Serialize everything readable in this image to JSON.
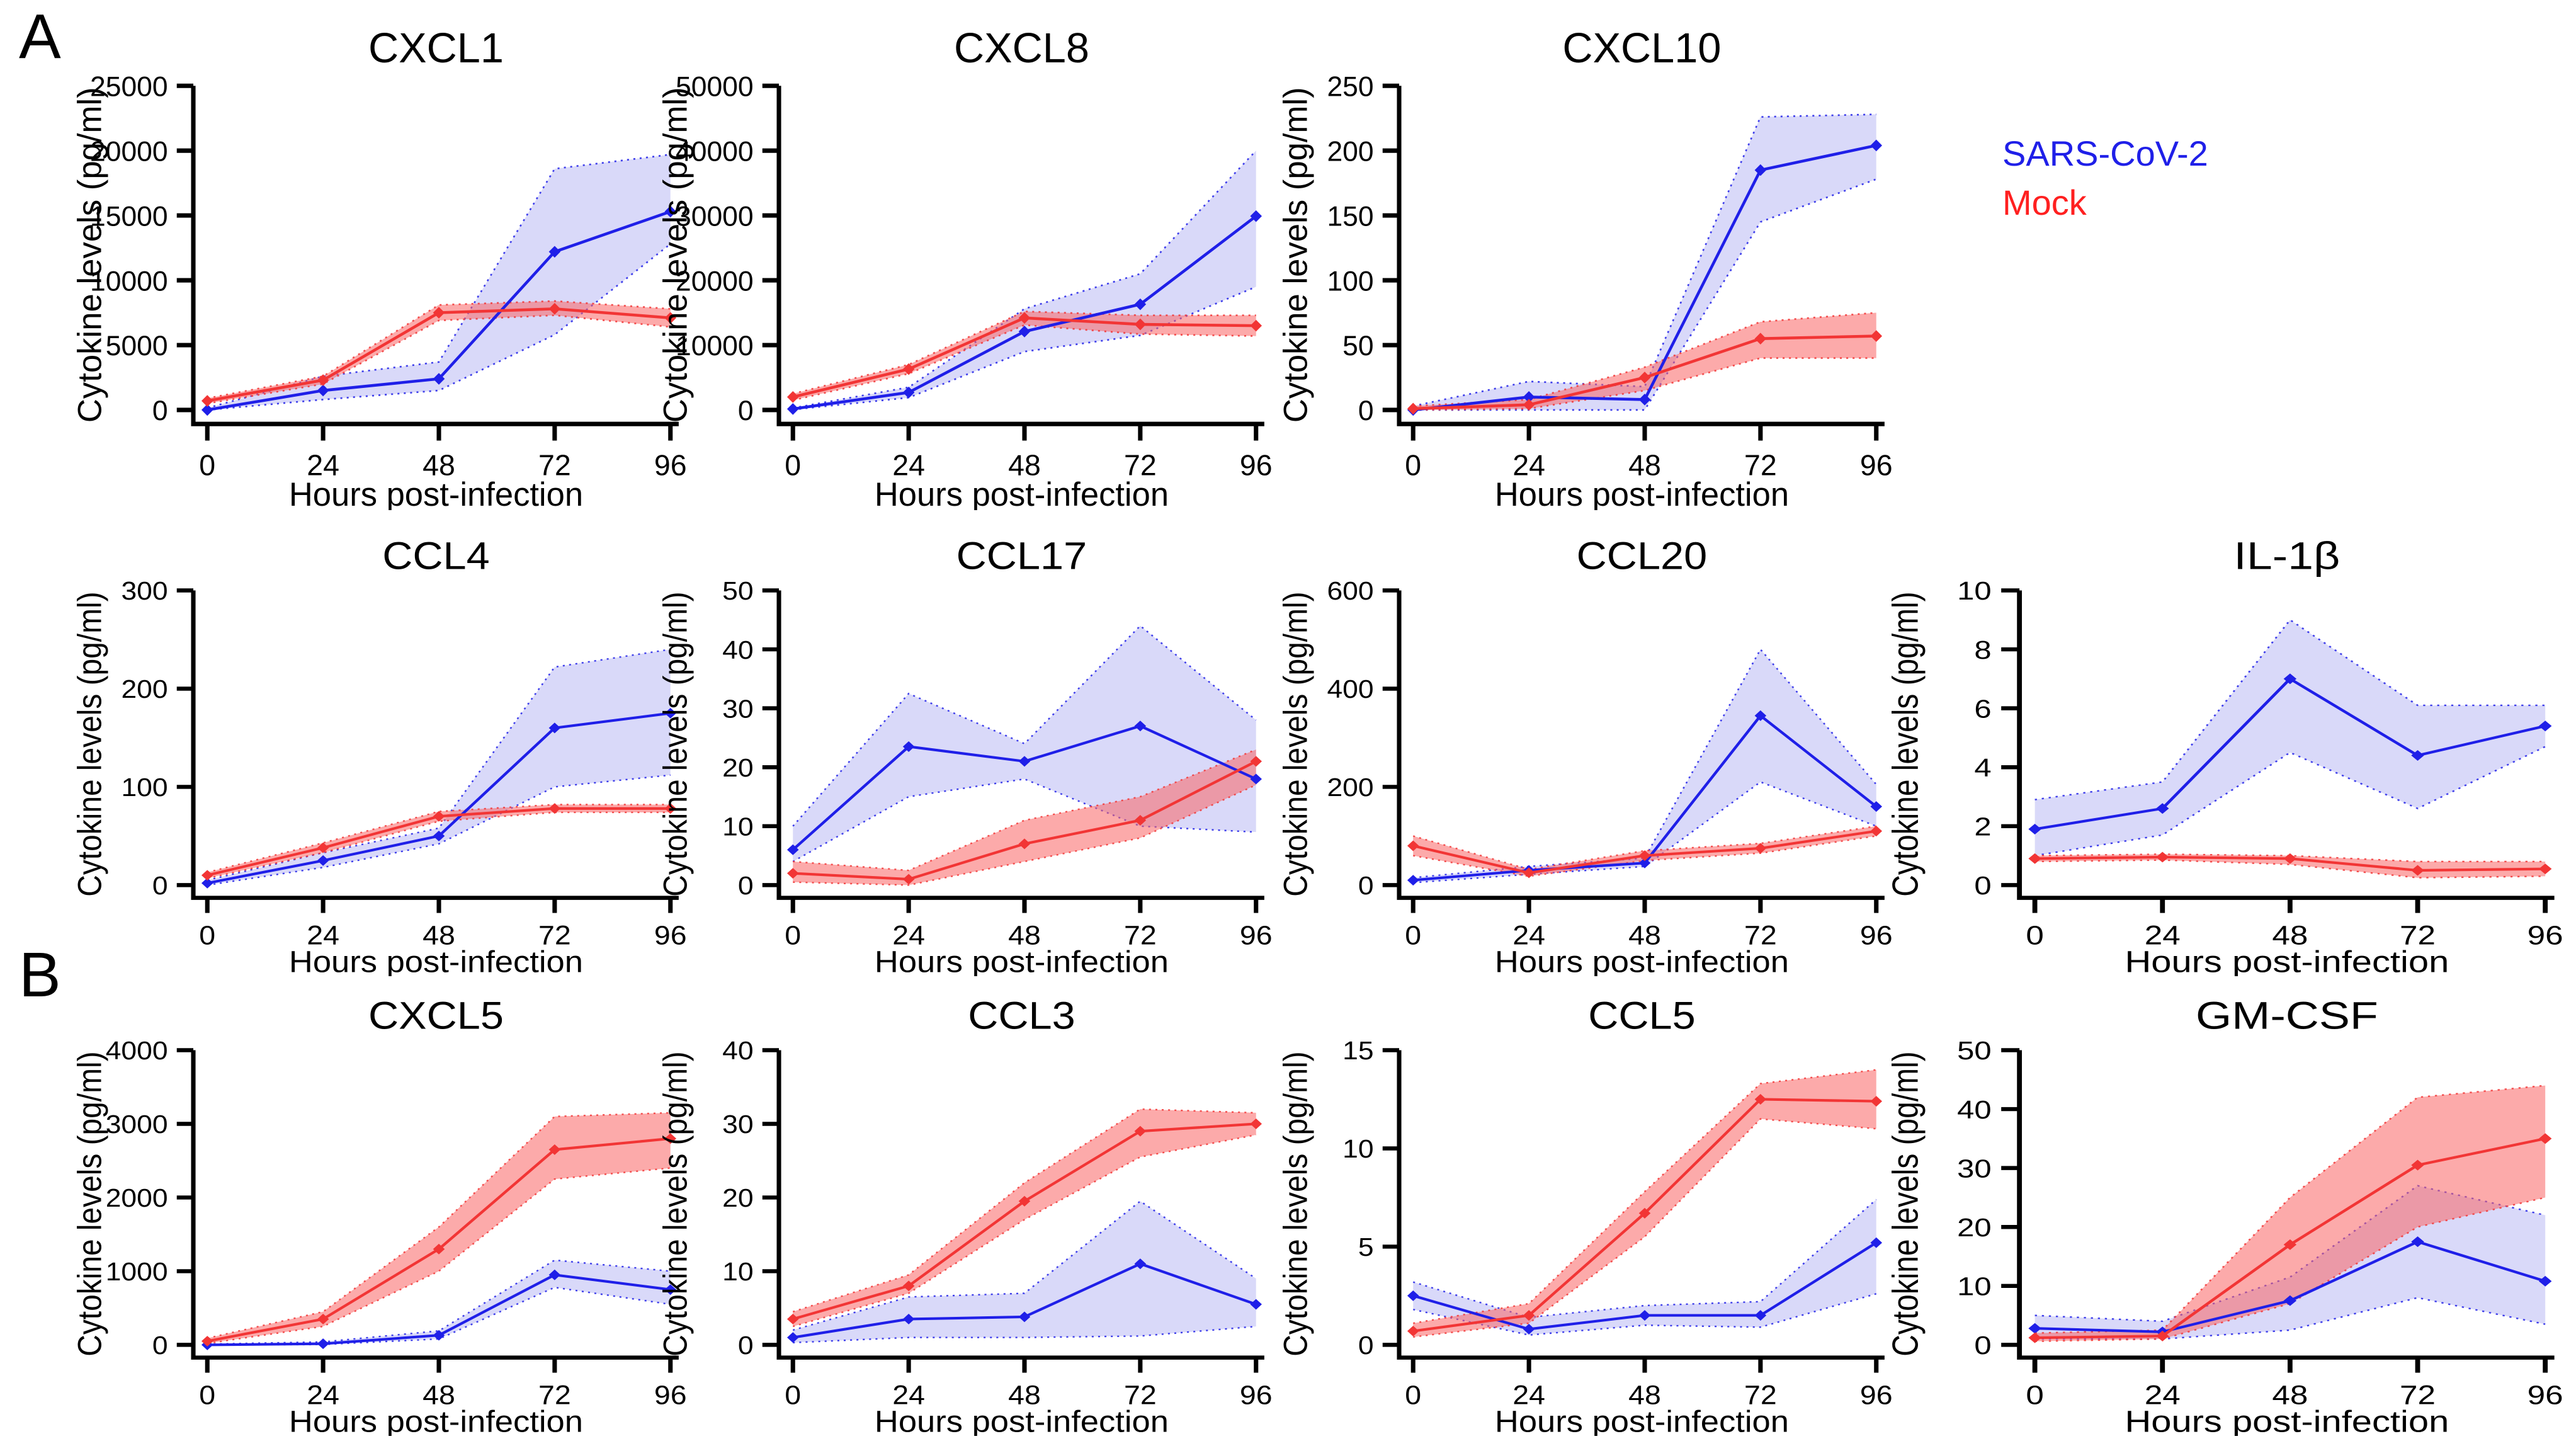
{
  "figure": {
    "panel_a_label": "A",
    "panel_b_label": "B",
    "xlabel": "Hours post-infection",
    "ylabel": "Cytokine levels (pg/ml)",
    "legend": {
      "items": [
        {
          "label": "SARS-CoV-2",
          "color": "#1f1fe8"
        },
        {
          "label": "Mock",
          "color": "#ff2020"
        }
      ]
    },
    "colors": {
      "sars_line": "#1f1fe8",
      "mock_line": "#f23535",
      "sars_band": "rgba(120,120,235,0.28)",
      "mock_band": "rgba(250,100,100,0.55)",
      "axis": "#000000"
    }
  },
  "chart_data": [
    {
      "type": "line",
      "panel": "A",
      "title": "CXCL1",
      "xlabel": "Hours post-infection",
      "ylabel": "Cytokine levels (pg/ml)",
      "x": [
        0,
        24,
        48,
        72,
        96
      ],
      "ylim": [
        0,
        25000
      ],
      "yticks": [
        0,
        5000,
        10000,
        15000,
        20000,
        25000
      ],
      "series": [
        {
          "name": "SARS-CoV-2",
          "color": "#1f1fe8",
          "band": "rgba(120,120,235,0.28)",
          "values": [
            0,
            1500,
            2400,
            12200,
            15300
          ],
          "band_lo": [
            0,
            800,
            1500,
            5800,
            12800
          ],
          "band_hi": [
            150,
            2600,
            3700,
            18600,
            19700
          ]
        },
        {
          "name": "Mock",
          "color": "#f23535",
          "band": "rgba(250,100,100,0.55)",
          "values": [
            700,
            2300,
            7500,
            7800,
            7100
          ],
          "band_lo": [
            500,
            2000,
            6900,
            7300,
            6400
          ],
          "band_hi": [
            900,
            2600,
            8100,
            8400,
            7800
          ]
        }
      ]
    },
    {
      "type": "line",
      "panel": "A",
      "title": "CXCL8",
      "xlabel": "Hours post-infection",
      "ylabel": "Cytokine levels (pg/ml)",
      "x": [
        0,
        24,
        48,
        72,
        96
      ],
      "ylim": [
        0,
        50000
      ],
      "yticks": [
        0,
        10000,
        20000,
        30000,
        40000,
        50000
      ],
      "series": [
        {
          "name": "SARS-CoV-2",
          "color": "#1f1fe8",
          "band": "rgba(120,120,235,0.28)",
          "values": [
            150,
            2700,
            12100,
            16300,
            29900
          ],
          "band_lo": [
            50,
            1900,
            9000,
            11500,
            19000
          ],
          "band_hi": [
            300,
            3500,
            15600,
            21000,
            40000
          ]
        },
        {
          "name": "Mock",
          "color": "#f23535",
          "band": "rgba(250,100,100,0.55)",
          "values": [
            2000,
            6300,
            14200,
            13200,
            13000
          ],
          "band_lo": [
            1500,
            5600,
            13100,
            11700,
            11400
          ],
          "band_hi": [
            2500,
            7000,
            15200,
            14600,
            14600
          ]
        }
      ]
    },
    {
      "type": "line",
      "panel": "A",
      "title": "CXCL10",
      "xlabel": "Hours post-infection",
      "ylabel": "Cytokine levels (pg/ml)",
      "x": [
        0,
        24,
        48,
        72,
        96
      ],
      "ylim": [
        0,
        250
      ],
      "yticks": [
        0,
        50,
        100,
        150,
        200,
        250
      ],
      "series": [
        {
          "name": "SARS-CoV-2",
          "color": "#1f1fe8",
          "band": "rgba(120,120,235,0.28)",
          "values": [
            0,
            10,
            8,
            185,
            204
          ],
          "band_lo": [
            0,
            0,
            0,
            145,
            178
          ],
          "band_hi": [
            3,
            22,
            18,
            226,
            228
          ]
        },
        {
          "name": "Mock",
          "color": "#f23535",
          "band": "rgba(250,100,100,0.55)",
          "values": [
            1,
            4,
            25,
            55,
            57
          ],
          "band_lo": [
            0,
            1,
            15,
            40,
            40
          ],
          "band_hi": [
            3,
            8,
            33,
            68,
            75
          ]
        }
      ]
    },
    {
      "type": "line",
      "panel": "A",
      "title": "CCL4",
      "xlabel": "Hours post-infection",
      "ylabel": "Cytokine levels (pg/ml)",
      "x": [
        0,
        24,
        48,
        72,
        96
      ],
      "ylim": [
        0,
        300
      ],
      "yticks": [
        0,
        100,
        200,
        300
      ],
      "series": [
        {
          "name": "SARS-CoV-2",
          "color": "#1f1fe8",
          "band": "rgba(120,120,235,0.28)",
          "values": [
            2,
            25,
            50,
            160,
            175
          ],
          "band_lo": [
            0,
            18,
            42,
            100,
            112
          ],
          "band_hi": [
            5,
            33,
            58,
            222,
            240
          ]
        },
        {
          "name": "Mock",
          "color": "#f23535",
          "band": "rgba(250,100,100,0.55)",
          "values": [
            10,
            38,
            70,
            78,
            78
          ],
          "band_lo": [
            7,
            33,
            65,
            74,
            74
          ],
          "band_hi": [
            13,
            43,
            75,
            82,
            82
          ]
        }
      ]
    },
    {
      "type": "line",
      "panel": "A",
      "title": "CCL17",
      "xlabel": "Hours post-infection",
      "ylabel": "Cytokine levels (pg/ml)",
      "x": [
        0,
        24,
        48,
        72,
        96
      ],
      "ylim": [
        0,
        50
      ],
      "yticks": [
        0,
        10,
        20,
        30,
        40,
        50
      ],
      "series": [
        {
          "name": "SARS-CoV-2",
          "color": "#1f1fe8",
          "band": "rgba(120,120,235,0.28)",
          "values": [
            6,
            23.5,
            21,
            27,
            18
          ],
          "band_lo": [
            4,
            15,
            18,
            10,
            9
          ],
          "band_hi": [
            10,
            32.5,
            24,
            44,
            28
          ]
        },
        {
          "name": "Mock",
          "color": "#f23535",
          "band": "rgba(250,100,100,0.55)",
          "values": [
            2,
            1,
            7,
            11,
            21
          ],
          "band_lo": [
            0.5,
            0,
            4,
            8,
            17
          ],
          "band_hi": [
            4,
            2.5,
            11,
            15,
            23
          ]
        }
      ]
    },
    {
      "type": "line",
      "panel": "A",
      "title": "CCL20",
      "xlabel": "Hours post-infection",
      "ylabel": "Cytokine levels (pg/ml)",
      "x": [
        0,
        24,
        48,
        72,
        96
      ],
      "ylim": [
        0,
        600
      ],
      "yticks": [
        0,
        200,
        400,
        600
      ],
      "series": [
        {
          "name": "SARS-CoV-2",
          "color": "#1f1fe8",
          "band": "rgba(120,120,235,0.28)",
          "values": [
            10,
            30,
            45,
            345,
            160
          ],
          "band_lo": [
            5,
            22,
            38,
            210,
            120
          ],
          "band_hi": [
            15,
            38,
            55,
            480,
            205
          ]
        },
        {
          "name": "Mock",
          "color": "#f23535",
          "band": "rgba(250,100,100,0.55)",
          "values": [
            80,
            25,
            60,
            75,
            110
          ],
          "band_lo": [
            60,
            18,
            50,
            65,
            100
          ],
          "band_hi": [
            100,
            32,
            70,
            85,
            120
          ]
        }
      ]
    },
    {
      "type": "line",
      "panel": "A",
      "title": "IL-1β",
      "xlabel": "Hours post-infection",
      "ylabel": "Cytokine levels (pg/ml)",
      "x": [
        0,
        24,
        48,
        72,
        96
      ],
      "ylim": [
        0,
        10
      ],
      "yticks": [
        0,
        2,
        4,
        6,
        8,
        10
      ],
      "series": [
        {
          "name": "SARS-CoV-2",
          "color": "#1f1fe8",
          "band": "rgba(120,120,235,0.28)",
          "values": [
            1.9,
            2.6,
            7,
            4.4,
            5.4
          ],
          "band_lo": [
            1,
            1.7,
            4.5,
            2.6,
            4.7
          ],
          "band_hi": [
            2.9,
            3.5,
            9,
            6.1,
            6.1
          ]
        },
        {
          "name": "Mock",
          "color": "#f23535",
          "band": "rgba(250,100,100,0.55)",
          "values": [
            0.9,
            0.95,
            0.9,
            0.5,
            0.55
          ],
          "band_lo": [
            0.8,
            0.85,
            0.7,
            0.25,
            0.3
          ],
          "band_hi": [
            1,
            1.05,
            1,
            0.8,
            0.8
          ]
        }
      ]
    },
    {
      "type": "line",
      "panel": "B",
      "title": "CXCL5",
      "xlabel": "Hours post-infection",
      "ylabel": "Cytokine levels (pg/ml)",
      "x": [
        0,
        24,
        48,
        72,
        96
      ],
      "ylim": [
        0,
        4000
      ],
      "yticks": [
        0,
        1000,
        2000,
        3000,
        4000
      ],
      "series": [
        {
          "name": "SARS-CoV-2",
          "color": "#1f1fe8",
          "band": "rgba(120,120,235,0.28)",
          "values": [
            0,
            15,
            130,
            950,
            750
          ],
          "band_lo": [
            0,
            5,
            80,
            780,
            550
          ],
          "band_hi": [
            10,
            40,
            190,
            1150,
            1000
          ]
        },
        {
          "name": "Mock",
          "color": "#f23535",
          "band": "rgba(250,100,100,0.55)",
          "values": [
            50,
            350,
            1300,
            2650,
            2800
          ],
          "band_lo": [
            20,
            250,
            1000,
            2250,
            2400
          ],
          "band_hi": [
            90,
            450,
            1600,
            3100,
            3150
          ]
        }
      ]
    },
    {
      "type": "line",
      "panel": "B",
      "title": "CCL3",
      "xlabel": "Hours post-infection",
      "ylabel": "Cytokine levels (pg/ml)",
      "x": [
        0,
        24,
        48,
        72,
        96
      ],
      "ylim": [
        0,
        40
      ],
      "yticks": [
        0,
        10,
        20,
        30,
        40
      ],
      "series": [
        {
          "name": "SARS-CoV-2",
          "color": "#1f1fe8",
          "band": "rgba(120,120,235,0.28)",
          "values": [
            1,
            3.5,
            3.8,
            11,
            5.5
          ],
          "band_lo": [
            0.3,
            1,
            1,
            1.2,
            2.5
          ],
          "band_hi": [
            2,
            6.5,
            7,
            19.5,
            9
          ]
        },
        {
          "name": "Mock",
          "color": "#f23535",
          "band": "rgba(250,100,100,0.55)",
          "values": [
            3.5,
            8,
            19.5,
            29,
            30
          ],
          "band_lo": [
            2.5,
            7,
            17,
            25.5,
            28.5
          ],
          "band_hi": [
            4.5,
            9.5,
            22,
            32,
            31.5
          ]
        }
      ]
    },
    {
      "type": "line",
      "panel": "B",
      "title": "CCL5",
      "xlabel": "Hours post-infection",
      "ylabel": "Cytokine levels (pg/ml)",
      "x": [
        0,
        24,
        48,
        72,
        96
      ],
      "ylim": [
        0,
        15
      ],
      "yticks": [
        0,
        5,
        10,
        15
      ],
      "series": [
        {
          "name": "SARS-CoV-2",
          "color": "#1f1fe8",
          "band": "rgba(120,120,235,0.28)",
          "values": [
            2.5,
            0.8,
            1.5,
            1.5,
            5.2
          ],
          "band_lo": [
            1.8,
            0.5,
            1,
            0.9,
            2.6
          ],
          "band_hi": [
            3.2,
            1.4,
            2,
            2.2,
            7.4
          ]
        },
        {
          "name": "Mock",
          "color": "#f23535",
          "band": "rgba(250,100,100,0.55)",
          "values": [
            0.7,
            1.5,
            6.7,
            12.5,
            12.4
          ],
          "band_lo": [
            0.4,
            1.1,
            5.5,
            11.5,
            11
          ],
          "band_hi": [
            1.1,
            2.1,
            7.8,
            13.3,
            14
          ]
        }
      ]
    },
    {
      "type": "line",
      "panel": "B",
      "title": "GM-CSF",
      "xlabel": "Hours post-infection",
      "ylabel": "Cytokine levels (pg/ml)",
      "x": [
        0,
        24,
        48,
        72,
        96
      ],
      "ylim": [
        0,
        50
      ],
      "yticks": [
        0,
        10,
        20,
        30,
        40,
        50
      ],
      "series": [
        {
          "name": "SARS-CoV-2",
          "color": "#1f1fe8",
          "band": "rgba(120,120,235,0.28)",
          "values": [
            2.8,
            2.2,
            7.5,
            17.5,
            10.8
          ],
          "band_lo": [
            1,
            1,
            2.5,
            8,
            3.5
          ],
          "band_hi": [
            5,
            4,
            11.5,
            27,
            22
          ]
        },
        {
          "name": "Mock",
          "color": "#f23535",
          "band": "rgba(250,100,100,0.55)",
          "values": [
            1.2,
            1.5,
            17,
            30.5,
            35
          ],
          "band_lo": [
            0.6,
            1,
            7,
            20,
            25
          ],
          "band_hi": [
            2,
            2.5,
            25,
            42,
            44
          ]
        }
      ]
    }
  ]
}
